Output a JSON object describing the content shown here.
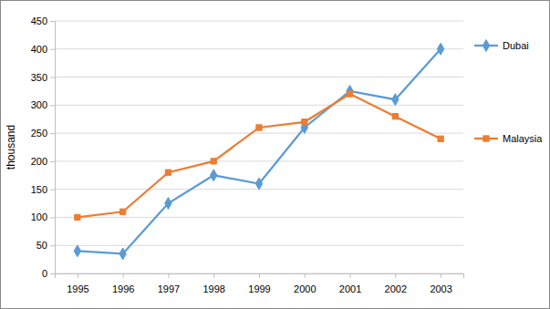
{
  "chart_data": {
    "type": "line",
    "y_label": "thousand",
    "categories": [
      "1995",
      "1996",
      "1997",
      "1998",
      "1999",
      "2000",
      "2001",
      "2002",
      "2003"
    ],
    "series": [
      {
        "name": "Dubai",
        "color": "#5b9bd5",
        "marker": "diamond",
        "values": [
          40,
          35,
          125,
          175,
          160,
          260,
          325,
          310,
          400
        ]
      },
      {
        "name": "Malaysia",
        "color": "#ed7d31",
        "marker": "square",
        "values": [
          100,
          110,
          180,
          200,
          260,
          270,
          320,
          280,
          240
        ]
      }
    ],
    "ylim": [
      0,
      450
    ],
    "yticks": [
      0,
      50,
      100,
      150,
      200,
      250,
      300,
      350,
      400,
      450
    ],
    "grid": true,
    "legend": "right"
  }
}
